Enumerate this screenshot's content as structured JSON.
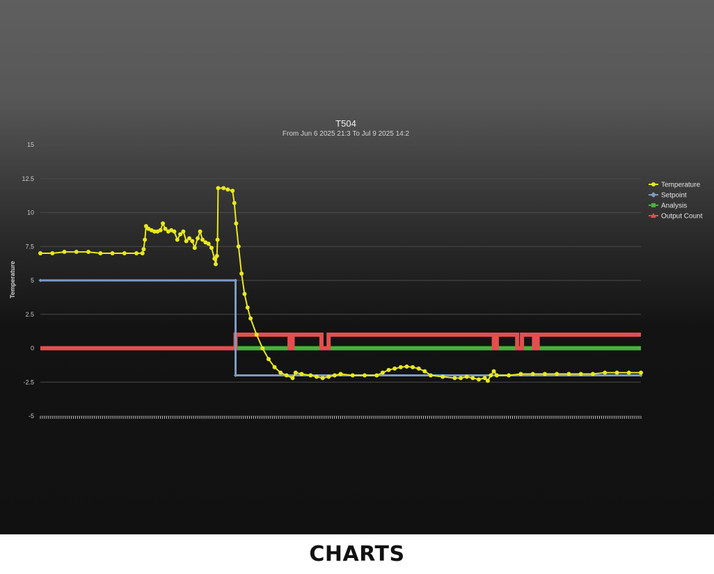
{
  "caption": "CHARTS",
  "chart_data": {
    "type": "line",
    "title": "T504",
    "subtitle": "From Jun 6 2025 21:3 To Jul 9 2025 14:2",
    "ylabel": "Temperature",
    "xlabel": "",
    "ylim": [
      -5,
      15
    ],
    "yticks": [
      15,
      12.5,
      10,
      7.5,
      5,
      2.5,
      0,
      -2.5,
      -5
    ],
    "ytick_labels": [
      "15",
      "12.5",
      "10",
      "7.5",
      "5",
      "2.5",
      "0",
      "-2.5",
      "-5"
    ],
    "grid": true,
    "legend": "right",
    "x_domain": [
      0,
      100
    ],
    "series": [
      {
        "name": "Temperature",
        "color": "#e8e820",
        "marker": "circle",
        "points": [
          [
            0,
            7.0
          ],
          [
            2,
            7.0
          ],
          [
            4,
            7.1
          ],
          [
            6,
            7.1
          ],
          [
            8,
            7.1
          ],
          [
            10,
            7.0
          ],
          [
            12,
            7.0
          ],
          [
            14,
            7.0
          ],
          [
            16,
            7.0
          ],
          [
            17,
            7.0
          ],
          [
            17.2,
            7.3
          ],
          [
            17.4,
            8.0
          ],
          [
            17.6,
            9.0
          ],
          [
            18,
            8.8
          ],
          [
            18.5,
            8.7
          ],
          [
            19,
            8.6
          ],
          [
            19.5,
            8.6
          ],
          [
            20,
            8.7
          ],
          [
            20.4,
            9.2
          ],
          [
            20.8,
            8.8
          ],
          [
            21.3,
            8.6
          ],
          [
            21.8,
            8.7
          ],
          [
            22.3,
            8.6
          ],
          [
            22.8,
            8.0
          ],
          [
            23.3,
            8.4
          ],
          [
            23.8,
            8.6
          ],
          [
            24.3,
            7.9
          ],
          [
            24.8,
            8.1
          ],
          [
            25.3,
            7.9
          ],
          [
            25.7,
            7.4
          ],
          [
            26.2,
            8.1
          ],
          [
            26.6,
            8.6
          ],
          [
            27.0,
            8.0
          ],
          [
            27.5,
            7.8
          ],
          [
            28.0,
            7.7
          ],
          [
            28.5,
            7.4
          ],
          [
            29.0,
            6.6
          ],
          [
            29.2,
            6.2
          ],
          [
            29.4,
            6.8
          ],
          [
            29.5,
            8.0
          ],
          [
            29.6,
            11.8
          ],
          [
            30.5,
            11.8
          ],
          [
            31.2,
            11.7
          ],
          [
            32.0,
            11.6
          ],
          [
            32.3,
            10.7
          ],
          [
            32.6,
            9.2
          ],
          [
            33.0,
            7.5
          ],
          [
            33.5,
            5.5
          ],
          [
            34.0,
            4.0
          ],
          [
            34.5,
            3.0
          ],
          [
            35.0,
            2.2
          ],
          [
            36.0,
            1.0
          ],
          [
            37.0,
            0.0
          ],
          [
            38.0,
            -0.8
          ],
          [
            39.0,
            -1.4
          ],
          [
            40.0,
            -1.8
          ],
          [
            41.0,
            -2.0
          ],
          [
            42.0,
            -2.2
          ],
          [
            42.5,
            -1.8
          ],
          [
            43.5,
            -1.9
          ],
          [
            45,
            -2.0
          ],
          [
            46,
            -2.1
          ],
          [
            47,
            -2.2
          ],
          [
            48,
            -2.1
          ],
          [
            49,
            -2.0
          ],
          [
            50,
            -1.9
          ],
          [
            52,
            -2.0
          ],
          [
            54,
            -2.0
          ],
          [
            56,
            -2.0
          ],
          [
            57,
            -1.8
          ],
          [
            58,
            -1.6
          ],
          [
            59,
            -1.5
          ],
          [
            60,
            -1.4
          ],
          [
            61,
            -1.35
          ],
          [
            62,
            -1.4
          ],
          [
            63,
            -1.5
          ],
          [
            64,
            -1.7
          ],
          [
            65,
            -2.0
          ],
          [
            67,
            -2.1
          ],
          [
            69,
            -2.2
          ],
          [
            70,
            -2.2
          ],
          [
            71,
            -2.1
          ],
          [
            72,
            -2.2
          ],
          [
            73,
            -2.3
          ],
          [
            74,
            -2.2
          ],
          [
            74.5,
            -2.4
          ],
          [
            75,
            -2.0
          ],
          [
            75.5,
            -1.7
          ],
          [
            76,
            -2.0
          ],
          [
            78,
            -2.0
          ],
          [
            80,
            -1.9
          ],
          [
            82,
            -1.9
          ],
          [
            84,
            -1.9
          ],
          [
            86,
            -1.9
          ],
          [
            88,
            -1.9
          ],
          [
            90,
            -1.9
          ],
          [
            92,
            -1.9
          ],
          [
            94,
            -1.8
          ],
          [
            96,
            -1.8
          ],
          [
            98,
            -1.8
          ],
          [
            100,
            -1.8
          ]
        ]
      },
      {
        "name": "Setpoint",
        "color": "#7b9cc4",
        "marker": "diamond",
        "points": [
          [
            0,
            5
          ],
          [
            32.5,
            5
          ],
          [
            32.5,
            -2
          ],
          [
            100,
            -2
          ]
        ]
      },
      {
        "name": "Analysis",
        "color": "#4ab13c",
        "marker": "square",
        "points": [
          [
            0,
            0
          ],
          [
            100,
            0
          ]
        ]
      },
      {
        "name": "Output Count",
        "color": "#e05050",
        "marker": "triangle",
        "points": [
          [
            0,
            0
          ],
          [
            32.5,
            0
          ],
          [
            32.5,
            1
          ],
          [
            41.5,
            1
          ],
          [
            41.5,
            0
          ],
          [
            42.0,
            0
          ],
          [
            42.0,
            1
          ],
          [
            46.8,
            1
          ],
          [
            46.8,
            0
          ],
          [
            48.0,
            0
          ],
          [
            48.0,
            1
          ],
          [
            75.5,
            1
          ],
          [
            75.5,
            0
          ],
          [
            76.0,
            0
          ],
          [
            76.0,
            1
          ],
          [
            79.4,
            1
          ],
          [
            79.4,
            0
          ],
          [
            80.2,
            0
          ],
          [
            80.2,
            1
          ],
          [
            82.2,
            1
          ],
          [
            82.2,
            0
          ],
          [
            82.8,
            0
          ],
          [
            82.8,
            1
          ],
          [
            100,
            1
          ]
        ]
      }
    ]
  }
}
